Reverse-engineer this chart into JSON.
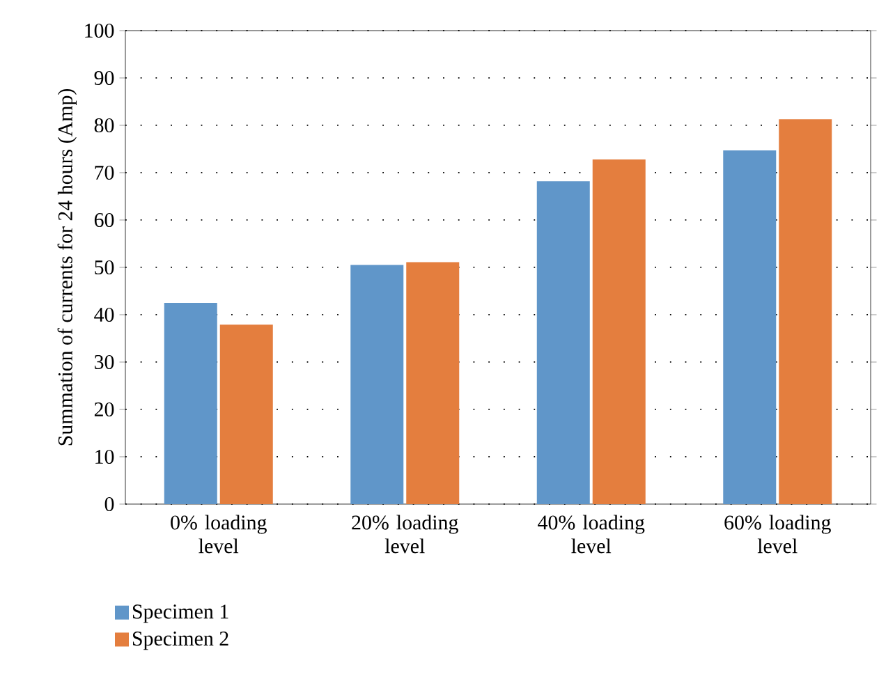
{
  "chart_data": {
    "type": "bar",
    "ylabel": "Summation of currents for 24 hours (Amp)",
    "categories": [
      "0% loading level",
      "20% loading level",
      "40% loading level",
      "60% loading level"
    ],
    "series": [
      {
        "name": "Specimen 1",
        "color": "#6096c9",
        "values": [
          42.5,
          50.5,
          68.2,
          74.7
        ]
      },
      {
        "name": "Specimen 2",
        "color": "#e47e3e",
        "values": [
          37.9,
          51.1,
          72.8,
          81.3
        ]
      }
    ],
    "ylim": [
      0,
      100
    ],
    "yticks": [
      0,
      10,
      20,
      30,
      40,
      50,
      60,
      70,
      80,
      90,
      100
    ],
    "grid": "y",
    "legend": "bottom left"
  }
}
